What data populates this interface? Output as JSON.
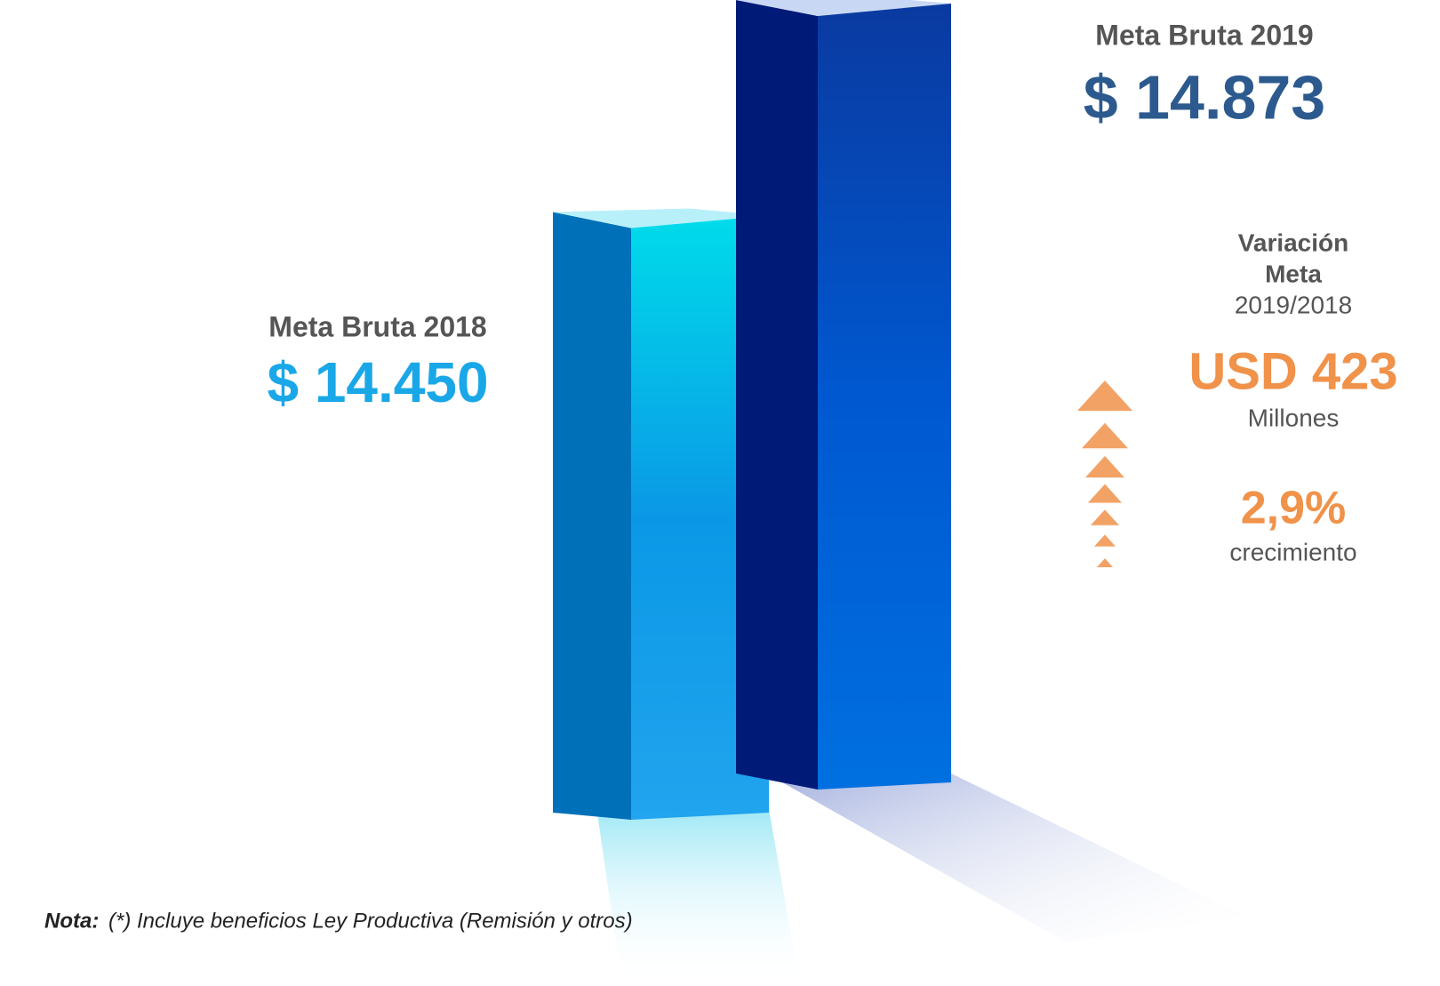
{
  "chart_data": {
    "type": "bar3d",
    "categories": [
      "Meta Bruta 2018",
      "Meta Bruta 2019"
    ],
    "values": [
      14450,
      14873
    ],
    "value_labels": [
      "$ 14.450",
      "$ 14.873"
    ],
    "colors": [
      "#0a8fe0",
      "#0050c8"
    ],
    "ylim": [
      12900,
      15000
    ],
    "variation": {
      "title": "Variación",
      "subtitle": "Meta",
      "period": "2019/2018",
      "amount_label": "USD 423",
      "amount": 423,
      "amount_unit": "Millones",
      "percent_label": "2,9%",
      "percent": 2.9,
      "percent_caption": "crecimiento",
      "color": "#f0924a"
    },
    "note_label": "Nota:",
    "note": "(*) Incluye beneficios Ley Productiva (Remisión y otros)"
  }
}
